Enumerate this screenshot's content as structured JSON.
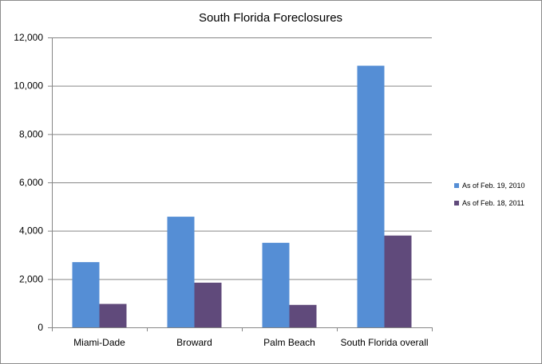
{
  "chart_data": {
    "type": "bar",
    "title": "South  Florida Foreclosures",
    "xlabel": "",
    "ylabel": "",
    "categories": [
      "Miami-Dade",
      "Broward",
      "Palm Beach",
      "South Florida overall"
    ],
    "series": [
      {
        "name": "As of Feb. 19, 2010",
        "values": [
          2700,
          4580,
          3500,
          10830
        ],
        "color": "#558ed5"
      },
      {
        "name": "As of Feb. 18, 2011",
        "values": [
          970,
          1850,
          930,
          3800
        ],
        "color": "#604a7b"
      }
    ],
    "ylim": [
      0,
      12000
    ],
    "yticks": [
      0,
      2000,
      4000,
      6000,
      8000,
      10000,
      12000
    ],
    "ytick_labels": [
      "0",
      "2,000",
      "4,000",
      "6,000",
      "8,000",
      "10,000",
      "12,000"
    ],
    "grid": true,
    "legend": "right",
    "gridline_color": "#868686"
  }
}
